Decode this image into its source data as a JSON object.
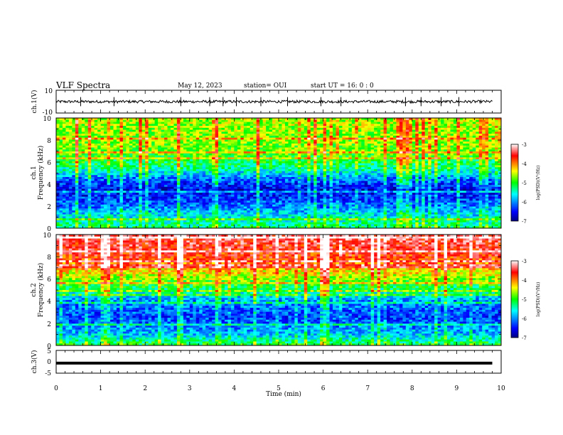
{
  "header": {
    "title": "VLF Spectra",
    "date": "May 12, 2023",
    "station": "station= OUI",
    "start": "start  UT =   16: 0  : 0"
  },
  "chart_data": [
    {
      "type": "line",
      "panel": "ch1_waveform",
      "ylabel": "ch.1(V)",
      "ylim": [
        -10,
        10
      ],
      "yticks": [
        "10",
        "-10"
      ],
      "xlim": [
        0,
        10
      ],
      "series": [
        {
          "values": [
            0
          ]
        }
      ],
      "baseline_v": 0,
      "noise_amp_v": 1.2,
      "spikes_at_min": [
        0.55,
        1.3,
        2.8,
        3.45,
        3.75,
        4.05,
        4.6,
        5.2,
        5.95,
        6.4,
        7.85,
        8.2,
        8.65,
        9.05
      ]
    },
    {
      "type": "heatmap",
      "panel": "ch1_spectrogram",
      "ylabel": "Frequency (kHz)",
      "channel_label": "ch.1",
      "yticks": [
        "10",
        "8",
        "6",
        "4",
        "2",
        "0"
      ],
      "ylim": [
        0,
        10
      ],
      "xlim": [
        0,
        10
      ],
      "colorbar": {
        "ticks": [
          "-3",
          "-4",
          "-5",
          "-6",
          "-7"
        ],
        "label": "log(PSD)(V²/Hz)",
        "range": [
          -7,
          -3
        ]
      },
      "level_profile": [
        {
          "khz": 0,
          "log_psd": -5.2
        },
        {
          "khz": 1,
          "log_psd": -5.6
        },
        {
          "khz": 2,
          "log_psd": -6.1
        },
        {
          "khz": 3.5,
          "log_psd": -6.6
        },
        {
          "khz": 4.5,
          "log_psd": -6.1
        },
        {
          "khz": 5.5,
          "log_psd": -5.3
        },
        {
          "khz": 7,
          "log_psd": -4.8
        },
        {
          "khz": 10,
          "log_psd": -4.6
        }
      ]
    },
    {
      "type": "heatmap",
      "panel": "ch2_spectrogram",
      "ylabel": "Frequency (kHz)",
      "channel_label": "ch.2",
      "yticks": [
        "10",
        "8",
        "6",
        "4",
        "2",
        "0"
      ],
      "ylim": [
        0,
        10
      ],
      "xlim": [
        0,
        10
      ],
      "colorbar": {
        "ticks": [
          "-3",
          "-4",
          "-5",
          "-6",
          "-7"
        ],
        "label": "log(PSD)(V²/Hz)",
        "range": [
          -7,
          -3
        ]
      },
      "level_profile": [
        {
          "khz": 0,
          "log_psd": -5.0
        },
        {
          "khz": 1,
          "log_psd": -5.8
        },
        {
          "khz": 2.5,
          "log_psd": -6.3
        },
        {
          "khz": 4,
          "log_psd": -6.0
        },
        {
          "khz": 5,
          "log_psd": -5.3
        },
        {
          "khz": 6.5,
          "log_psd": -4.4
        },
        {
          "khz": 8,
          "log_psd": -3.7
        },
        {
          "khz": 10,
          "log_psd": -3.4
        }
      ]
    },
    {
      "type": "line",
      "panel": "ch3_waveform",
      "ylabel": "ch.3(V)",
      "ylim": [
        -5,
        5
      ],
      "yticks": [
        "5",
        "0",
        "-5"
      ],
      "xlim": [
        0,
        9.8
      ],
      "series": [
        {
          "values": [
            -0.6,
            -0.6
          ]
        }
      ]
    }
  ],
  "xaxis": {
    "label": "Time (min)",
    "ticks": [
      "0",
      "1",
      "2",
      "3",
      "4",
      "5",
      "6",
      "7",
      "8",
      "9",
      "10"
    ],
    "range": [
      0,
      10
    ]
  }
}
